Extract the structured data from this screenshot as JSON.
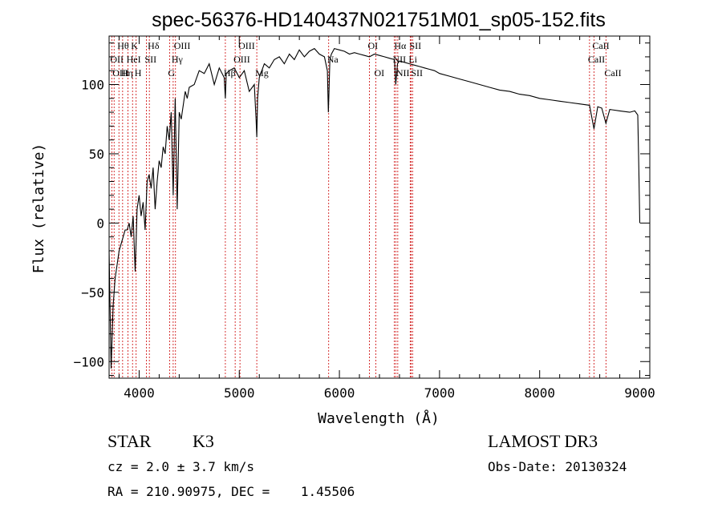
{
  "chart_data": {
    "type": "line",
    "title": "spec-56376-HD140437N021751M01_sp05-152.fits",
    "xlabel": "Wavelength (Å)",
    "ylabel": "Flux (relative)",
    "xlim": [
      3700,
      9100
    ],
    "ylim": [
      -112,
      135
    ],
    "x_ticks": [
      4000,
      5000,
      6000,
      7000,
      8000,
      9000
    ],
    "y_ticks": [
      -100,
      -50,
      0,
      50,
      100
    ],
    "grid": false,
    "series": [
      {
        "name": "spectrum",
        "x": [
          3700,
          3720,
          3740,
          3760,
          3780,
          3800,
          3820,
          3840,
          3860,
          3880,
          3900,
          3920,
          3940,
          3960,
          3980,
          4000,
          4020,
          4040,
          4060,
          4080,
          4100,
          4120,
          4140,
          4160,
          4180,
          4200,
          4220,
          4240,
          4260,
          4280,
          4300,
          4320,
          4340,
          4360,
          4380,
          4400,
          4420,
          4440,
          4460,
          4480,
          4500,
          4550,
          4600,
          4650,
          4700,
          4750,
          4800,
          4850,
          4861,
          4870,
          4900,
          4950,
          5000,
          5050,
          5100,
          5150,
          5168,
          5175,
          5183,
          5200,
          5250,
          5300,
          5350,
          5400,
          5450,
          5500,
          5550,
          5600,
          5650,
          5700,
          5750,
          5800,
          5850,
          5880,
          5890,
          5896,
          5905,
          5920,
          5950,
          6000,
          6050,
          6100,
          6150,
          6200,
          6250,
          6300,
          6350,
          6400,
          6450,
          6500,
          6550,
          6563,
          6580,
          6600,
          6650,
          6700,
          6750,
          6800,
          6850,
          6900,
          6950,
          7000,
          7100,
          7200,
          7300,
          7400,
          7500,
          7600,
          7700,
          7800,
          7900,
          8000,
          8100,
          8200,
          8300,
          8400,
          8498,
          8542,
          8580,
          8620,
          8662,
          8700,
          8800,
          8900,
          8950,
          8980,
          8990,
          9000
        ],
        "values": [
          -20,
          -105,
          -60,
          -40,
          -30,
          -20,
          -15,
          -10,
          -5,
          -5,
          0,
          -10,
          5,
          -35,
          10,
          20,
          5,
          15,
          -5,
          30,
          35,
          25,
          40,
          10,
          30,
          45,
          40,
          55,
          50,
          70,
          60,
          80,
          20,
          90,
          10,
          80,
          75,
          85,
          95,
          90,
          98,
          100,
          110,
          108,
          115,
          100,
          112,
          105,
          90,
          108,
          110,
          112,
          105,
          110,
          95,
          100,
          75,
          62,
          90,
          105,
          115,
          112,
          118,
          120,
          115,
          122,
          118,
          125,
          120,
          124,
          126,
          122,
          120,
          110,
          80,
          95,
          118,
          122,
          126,
          125,
          124,
          122,
          123,
          122,
          121,
          120,
          122,
          121,
          120,
          119,
          118,
          100,
          115,
          117,
          116,
          115,
          114,
          113,
          112,
          111,
          110,
          108,
          106,
          104,
          102,
          100,
          98,
          96,
          95,
          93,
          92,
          90,
          89,
          88,
          87,
          86,
          85,
          68,
          84,
          83,
          72,
          82,
          81,
          80,
          81,
          78,
          40,
          0
        ]
      }
    ],
    "line_markers": [
      {
        "label": "Hθ",
        "wavelength": 3798,
        "row": 1
      },
      {
        "label": "OII",
        "wavelength": 3727,
        "row": 2
      },
      {
        "label": "OIII",
        "wavelength": 3750,
        "row": 3
      },
      {
        "label": "K",
        "wavelength": 3934,
        "row": 1
      },
      {
        "label": "HeI",
        "wavelength": 3889,
        "row": 2
      },
      {
        "label": "Hη",
        "wavelength": 3835,
        "row": 3
      },
      {
        "label": "Hδ",
        "wavelength": 4102,
        "row": 1
      },
      {
        "label": "SII",
        "wavelength": 4072,
        "row": 2
      },
      {
        "label": "H",
        "wavelength": 3970,
        "row": 3
      },
      {
        "label": "OIII",
        "wavelength": 4363,
        "row": 1
      },
      {
        "label": "Hγ",
        "wavelength": 4340,
        "row": 2
      },
      {
        "label": "G",
        "wavelength": 4304,
        "row": 3
      },
      {
        "label": "OIII",
        "wavelength": 5007,
        "row": 1
      },
      {
        "label": "OIII",
        "wavelength": 4959,
        "row": 2
      },
      {
        "label": "Hβ",
        "wavelength": 4861,
        "row": 3
      },
      {
        "label": "Mg",
        "wavelength": 5175,
        "row": 3
      },
      {
        "label": "Na",
        "wavelength": 5893,
        "row": 2
      },
      {
        "label": "OI",
        "wavelength": 6300,
        "row": 1
      },
      {
        "label": "OI",
        "wavelength": 6364,
        "row": 3
      },
      {
        "label": "Hα",
        "wavelength": 6563,
        "row": 1
      },
      {
        "label": "NII",
        "wavelength": 6548,
        "row": 2
      },
      {
        "label": "NII",
        "wavelength": 6583,
        "row": 3
      },
      {
        "label": "SII",
        "wavelength": 6716,
        "row": 1
      },
      {
        "label": "Li",
        "wavelength": 6707,
        "row": 2
      },
      {
        "label": "SII",
        "wavelength": 6731,
        "row": 3
      },
      {
        "label": "CaII",
        "wavelength": 8542,
        "row": 1
      },
      {
        "label": "CaII",
        "wavelength": 8498,
        "row": 2
      },
      {
        "label": "CaII",
        "wavelength": 8662,
        "row": 3
      }
    ]
  },
  "info": {
    "class_label": "STAR",
    "subclass": "K3",
    "cz_text": "cz = 2.0 ± 3.7 km/s",
    "radec_text": "RA = 210.90975, DEC =    1.45506",
    "survey": "LAMOST DR3",
    "obs_date_text": "Obs-Date: 20130324"
  },
  "colors": {
    "spectrum": "#000000",
    "marker_line": "#cc0000",
    "axes": "#000000"
  }
}
